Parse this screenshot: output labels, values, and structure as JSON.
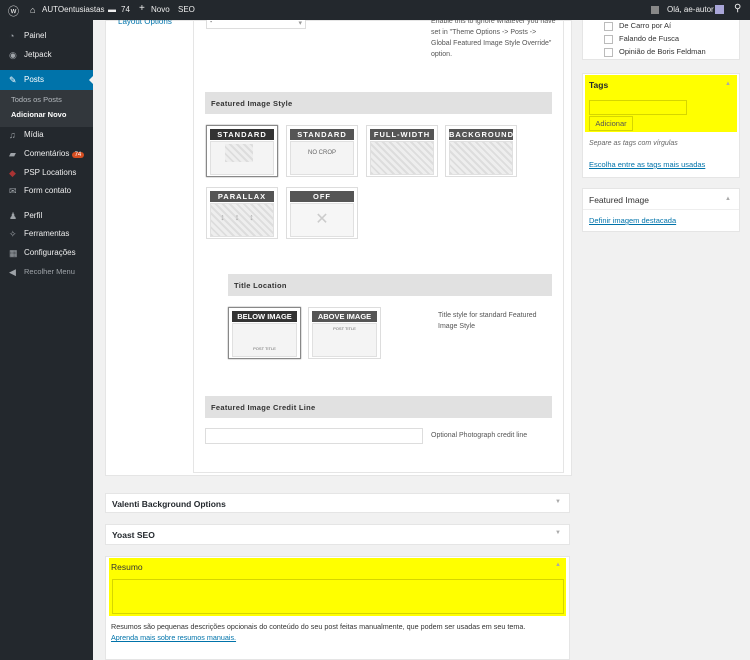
{
  "adminbar": {
    "site": "AUTOentusiastas",
    "comments": "74",
    "new": "Novo",
    "seo": "SEO",
    "greeting": "Olá, ae-autor"
  },
  "sidebar": {
    "items": [
      {
        "label": "Painel",
        "icon": "dashboard-icon"
      },
      {
        "label": "Jetpack",
        "icon": "jetpack-icon"
      },
      {
        "label": "Posts",
        "icon": "pin-icon"
      },
      {
        "label": "Mídia",
        "icon": "media-icon"
      },
      {
        "label": "Comentários",
        "icon": "comment-icon",
        "badge": "74"
      },
      {
        "label": "PSP Locations",
        "icon": "location-icon"
      },
      {
        "label": "Form contato",
        "icon": "mail-icon"
      },
      {
        "label": "Perfil",
        "icon": "user-icon"
      },
      {
        "label": "Ferramentas",
        "icon": "wrench-icon"
      },
      {
        "label": "Configurações",
        "icon": "settings-icon"
      },
      {
        "label": "Recolher Menu",
        "icon": "collapse-icon"
      }
    ],
    "submenu": [
      "Todos os Posts",
      "Adicionar Novo"
    ]
  },
  "options": {
    "layout_label": "Layout Options",
    "select_value": "-",
    "override_desc": "Enable this to ignore whatever you have set in \"Theme Options -> Posts -> Global Featured Image Style Override\" option.",
    "fis_title": "Featured Image Style",
    "styles": [
      "STANDARD",
      "STANDARD",
      "FULL-WIDTH",
      "BACKGROUND",
      "PARALLAX",
      "OFF"
    ],
    "no_crop": "NO CROP",
    "title_location": "Title Location",
    "locations": [
      "BELOW IMAGE",
      "ABOVE IMAGE"
    ],
    "post_title": "POST TITLE",
    "location_desc": "Title style for standard Featured Image Style",
    "credit_title": "Featured Image Credit Line",
    "credit_value": "",
    "credit_desc": "Optional Photograph credit line"
  },
  "boxes": {
    "valenti": "Valenti Background Options",
    "yoast": "Yoast SEO",
    "resumo": "Resumo",
    "resumo_value": "",
    "resumo_desc": "Resumos são pequenas descrições opcionais do conteúdo do seu post feitas manualmente, que podem ser usadas em seu tema.",
    "resumo_link": "Aprenda mais sobre resumos manuais."
  },
  "right": {
    "categories": [
      "De Carro por Aí",
      "Falando de Fusca",
      "Opinião de Boris Feldman"
    ],
    "tags_title": "Tags",
    "tags_value": "",
    "tags_button": "Adicionar",
    "tags_hint": "Separe as tags com vírgulas",
    "tags_link": "Escolha entre as tags mais usadas",
    "fi_title": "Featured Image",
    "fi_link": "Definir imagem destacada"
  },
  "colors": {
    "highlight": "#ffff00",
    "accent": "#0073aa",
    "adminbar": "#23282d"
  }
}
